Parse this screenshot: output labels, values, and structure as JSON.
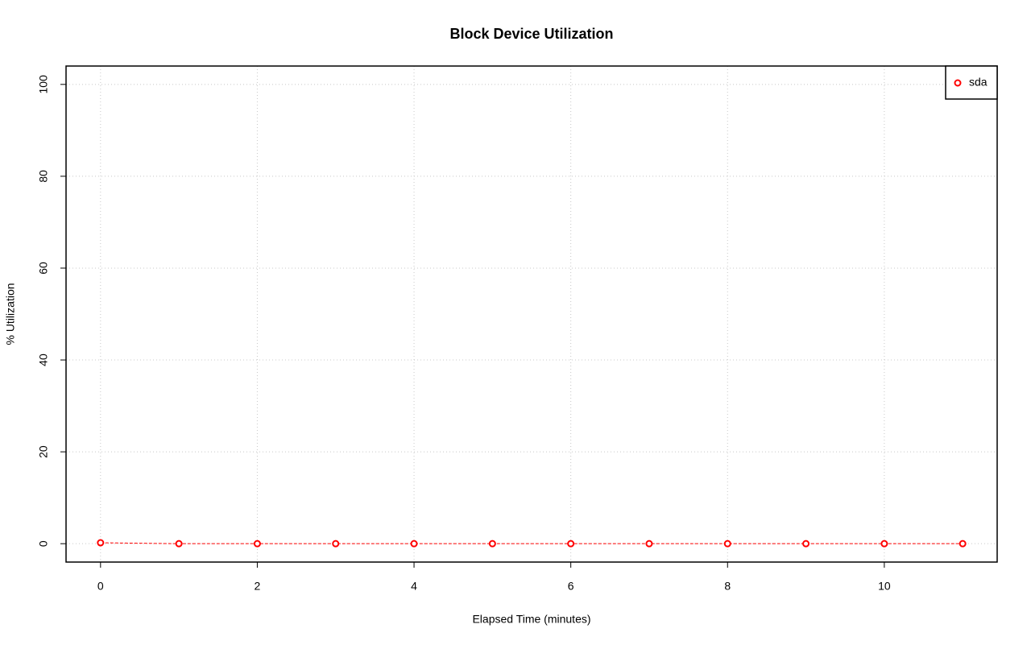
{
  "chart_data": {
    "type": "line",
    "title": "Block Device Utilization",
    "x_label": "Elapsed Time (minutes)",
    "y_label": "% Utilization",
    "x": [
      0,
      1,
      2,
      3,
      4,
      5,
      6,
      7,
      8,
      9,
      10,
      11
    ],
    "series": [
      {
        "name": "sda",
        "color": "#ff0000",
        "values": [
          0.2,
          0,
          0,
          0,
          0,
          0,
          0,
          0,
          0,
          0,
          0,
          0
        ]
      }
    ],
    "xlim": [
      -0.44,
      11.44
    ],
    "xticks": [
      0,
      2,
      4,
      6,
      8,
      10
    ],
    "ylim": [
      -4,
      104
    ],
    "yticks": [
      0,
      20,
      40,
      60,
      80,
      100
    ],
    "grid": true,
    "legend": "topright"
  }
}
